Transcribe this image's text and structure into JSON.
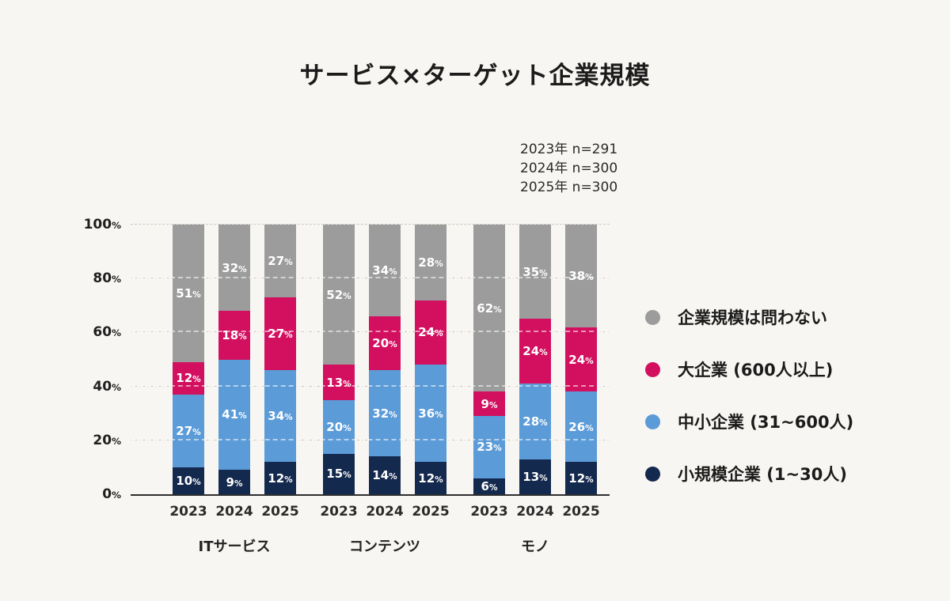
{
  "title": "サービス×ターゲット企業規模",
  "notes": {
    "lines": [
      "2023年  n=291",
      "2024年  n=300",
      "2025年  n=300"
    ]
  },
  "colors": {
    "background": "#f8f6f2",
    "gray": "#9c9c9c",
    "crimson": "#d2105f",
    "blue": "#5b9bd8",
    "navy": "#14294e",
    "axis": "#2e2e2e"
  },
  "chart_data": {
    "type": "stacked-bar",
    "title": "サービス×ターゲット企業規模",
    "y_unit": "%",
    "ylim": [
      0,
      100
    ],
    "y_ticks": [
      0,
      20,
      40,
      60,
      80,
      100
    ],
    "grid": "dashed-horizontal",
    "legend_position": "right",
    "series": [
      {
        "name": "小規模企業 (1~30人)",
        "color": "#14294e"
      },
      {
        "name": "中小企業 (31~600人)",
        "color": "#5b9bd8"
      },
      {
        "name": "大企業 (600人以上)",
        "color": "#d2105f"
      },
      {
        "name": "企業規模は問わない",
        "color": "#9c9c9c"
      }
    ],
    "groups": [
      {
        "label": "ITサービス",
        "bars": [
          {
            "year": "2023",
            "values": [
              10,
              27,
              12,
              51
            ]
          },
          {
            "year": "2024",
            "values": [
              9,
              41,
              18,
              32
            ]
          },
          {
            "year": "2025",
            "values": [
              12,
              34,
              27,
              27
            ]
          }
        ]
      },
      {
        "label": "コンテンツ",
        "bars": [
          {
            "year": "2023",
            "values": [
              15,
              20,
              13,
              52
            ]
          },
          {
            "year": "2024",
            "values": [
              14,
              32,
              20,
              34
            ]
          },
          {
            "year": "2025",
            "values": [
              12,
              36,
              24,
              28
            ]
          }
        ]
      },
      {
        "label": "モノ",
        "bars": [
          {
            "year": "2023",
            "values": [
              6,
              23,
              9,
              62
            ]
          },
          {
            "year": "2024",
            "values": [
              13,
              28,
              24,
              35
            ]
          },
          {
            "year": "2025",
            "values": [
              12,
              26,
              24,
              38
            ]
          }
        ]
      }
    ]
  },
  "legend": {
    "items": [
      {
        "label": "企業規模は問わない",
        "color": "#9c9c9c"
      },
      {
        "label": "大企業 (600人以上)",
        "color": "#d2105f"
      },
      {
        "label": "中小企業 (31~600人)",
        "color": "#5b9bd8"
      },
      {
        "label": "小規模企業 (1~30人)",
        "color": "#14294e"
      }
    ]
  }
}
